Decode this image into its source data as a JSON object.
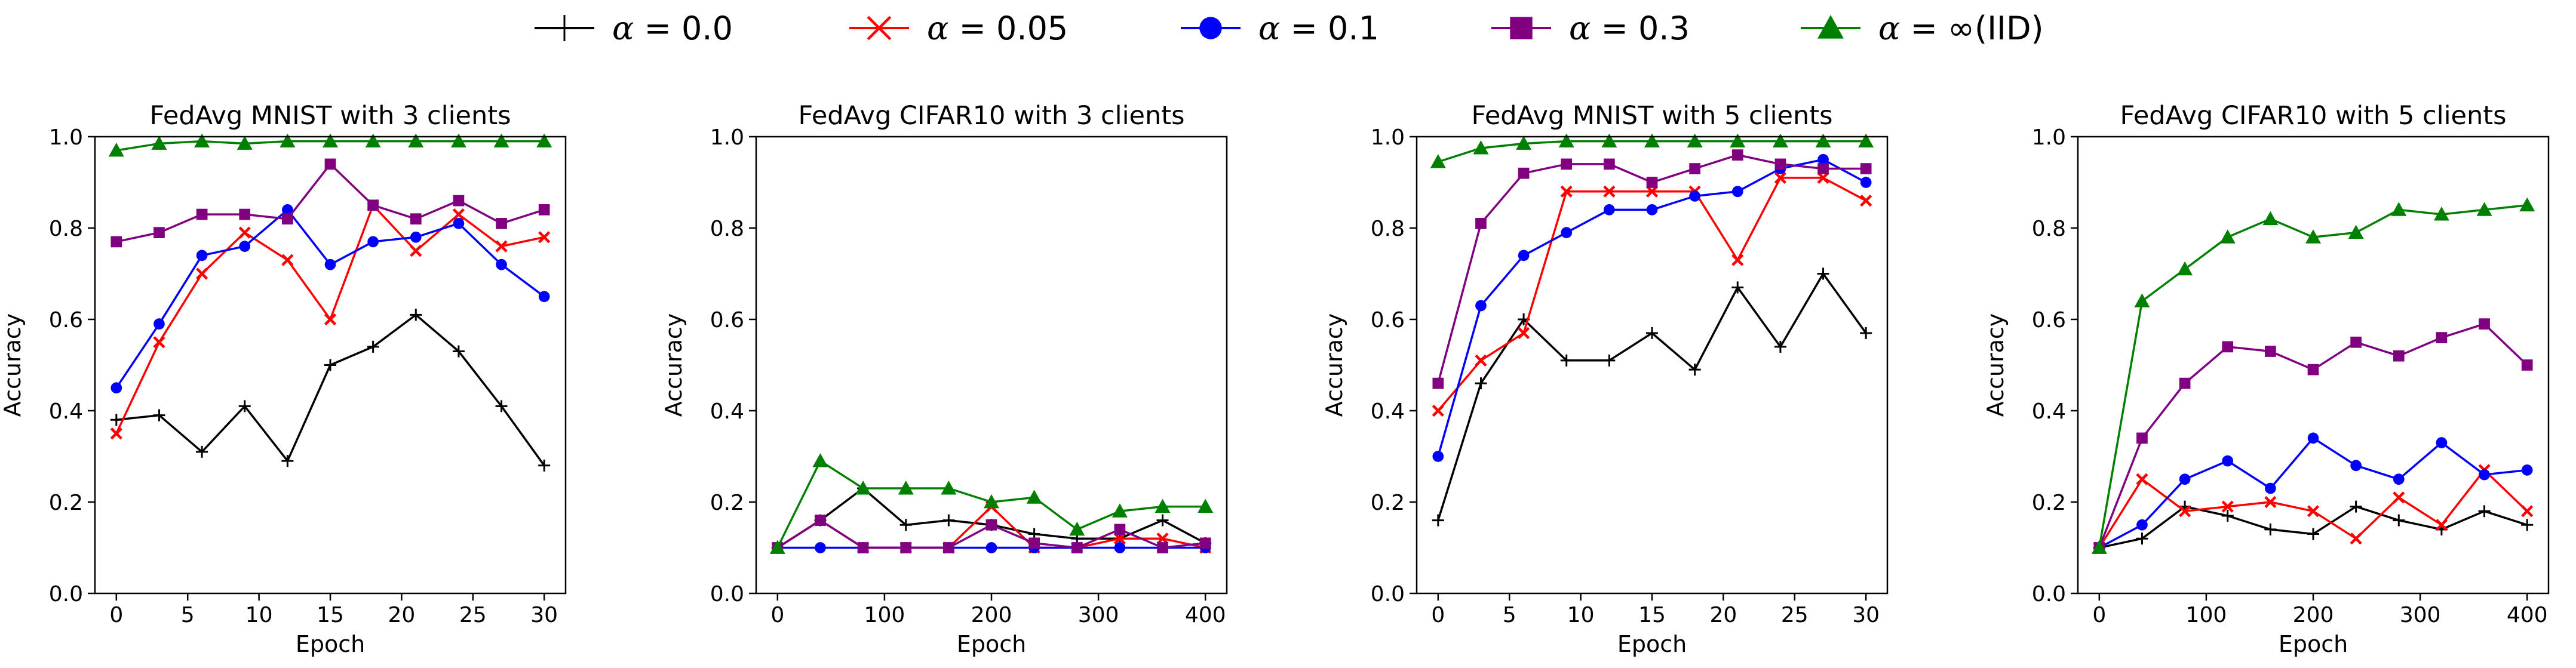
{
  "legend": {
    "placement": "top-center",
    "entries": [
      {
        "symbol": "α",
        "rest": " = 0.0",
        "color": "#000000",
        "marker": "plus"
      },
      {
        "symbol": "α",
        "rest": " = 0.05",
        "color": "#ff0000",
        "marker": "x"
      },
      {
        "symbol": "α",
        "rest": " = 0.1",
        "color": "#0000ff",
        "marker": "circle"
      },
      {
        "symbol": "α",
        "rest": " = 0.3",
        "color": "#800080",
        "marker": "square"
      },
      {
        "symbol": "α",
        "rest": " = ∞(IID)",
        "color": "#008000",
        "marker": "triangle"
      }
    ]
  },
  "chart_data": [
    {
      "type": "line",
      "title": "FedAvg MNIST with 3 clients",
      "xlabel": "Epoch",
      "ylabel": "Accuracy",
      "xlim": [
        -1.5,
        31.5
      ],
      "ylim": [
        0,
        1
      ],
      "xticks": [
        0,
        5,
        10,
        15,
        20,
        25,
        30
      ],
      "xtick_labels": [
        "0",
        "5",
        "10",
        "15",
        "20",
        "25",
        "30"
      ],
      "yticks": [
        0,
        0.2,
        0.4,
        0.6,
        0.8,
        1.0
      ],
      "ytick_labels": [
        "0.0",
        "0.2",
        "0.4",
        "0.6",
        "0.8",
        "1.0"
      ],
      "grid": false,
      "x": [
        0,
        3,
        6,
        9,
        12,
        15,
        18,
        21,
        24,
        27,
        30
      ],
      "series": [
        {
          "values": [
            0.38,
            0.39,
            0.31,
            0.41,
            0.29,
            0.5,
            0.54,
            0.61,
            0.53,
            0.41,
            0.28
          ]
        },
        {
          "values": [
            0.35,
            0.55,
            0.7,
            0.79,
            0.73,
            0.6,
            0.85,
            0.75,
            0.83,
            0.76,
            0.78
          ]
        },
        {
          "values": [
            0.45,
            0.59,
            0.74,
            0.76,
            0.84,
            0.72,
            0.77,
            0.78,
            0.81,
            0.72,
            0.65
          ]
        },
        {
          "values": [
            0.77,
            0.79,
            0.83,
            0.83,
            0.82,
            0.94,
            0.85,
            0.82,
            0.86,
            0.81,
            0.84
          ]
        },
        {
          "values": [
            0.97,
            0.985,
            0.99,
            0.985,
            0.99,
            0.99,
            0.99,
            0.99,
            0.99,
            0.99,
            0.99
          ]
        }
      ]
    },
    {
      "type": "line",
      "title": "FedAvg CIFAR10 with 3 clients",
      "xlabel": "Epoch",
      "ylabel": "Accuracy",
      "xlim": [
        -20,
        420
      ],
      "ylim": [
        0,
        1
      ],
      "xticks": [
        0,
        100,
        200,
        300,
        400
      ],
      "xtick_labels": [
        "0",
        "100",
        "200",
        "300",
        "400"
      ],
      "yticks": [
        0,
        0.2,
        0.4,
        0.6,
        0.8,
        1.0
      ],
      "ytick_labels": [
        "0.0",
        "0.2",
        "0.4",
        "0.6",
        "0.8",
        "1.0"
      ],
      "grid": false,
      "x": [
        0,
        40,
        80,
        120,
        160,
        200,
        240,
        280,
        320,
        360,
        400
      ],
      "series": [
        {
          "values": [
            0.1,
            0.16,
            0.23,
            0.15,
            0.16,
            0.15,
            0.13,
            0.12,
            0.12,
            0.16,
            0.11
          ]
        },
        {
          "values": [
            0.1,
            0.16,
            0.1,
            0.1,
            0.1,
            0.19,
            0.1,
            0.1,
            0.12,
            0.12,
            0.1
          ]
        },
        {
          "values": [
            0.1,
            0.1,
            0.1,
            0.1,
            0.1,
            0.1,
            0.1,
            0.1,
            0.1,
            0.1,
            0.1
          ]
        },
        {
          "values": [
            0.1,
            0.16,
            0.1,
            0.1,
            0.1,
            0.15,
            0.11,
            0.1,
            0.14,
            0.1,
            0.11
          ]
        },
        {
          "values": [
            0.1,
            0.29,
            0.23,
            0.23,
            0.23,
            0.2,
            0.21,
            0.14,
            0.18,
            0.19,
            0.19
          ]
        }
      ]
    },
    {
      "type": "line",
      "title": "FedAvg MNIST with 5 clients",
      "xlabel": "Epoch",
      "ylabel": "Accuracy",
      "xlim": [
        -1.5,
        31.5
      ],
      "ylim": [
        0,
        1
      ],
      "xticks": [
        0,
        5,
        10,
        15,
        20,
        25,
        30
      ],
      "xtick_labels": [
        "0",
        "5",
        "10",
        "15",
        "20",
        "25",
        "30"
      ],
      "yticks": [
        0,
        0.2,
        0.4,
        0.6,
        0.8,
        1.0
      ],
      "ytick_labels": [
        "0.0",
        "0.2",
        "0.4",
        "0.6",
        "0.8",
        "1.0"
      ],
      "grid": false,
      "x": [
        0,
        3,
        6,
        9,
        12,
        15,
        18,
        21,
        24,
        27,
        30
      ],
      "series": [
        {
          "values": [
            0.16,
            0.46,
            0.6,
            0.51,
            0.51,
            0.57,
            0.49,
            0.67,
            0.54,
            0.7,
            0.57
          ]
        },
        {
          "values": [
            0.4,
            0.51,
            0.57,
            0.88,
            0.88,
            0.88,
            0.88,
            0.73,
            0.91,
            0.91,
            0.86
          ]
        },
        {
          "values": [
            0.3,
            0.63,
            0.74,
            0.79,
            0.84,
            0.84,
            0.87,
            0.88,
            0.93,
            0.95,
            0.9
          ]
        },
        {
          "values": [
            0.46,
            0.81,
            0.92,
            0.94,
            0.94,
            0.9,
            0.93,
            0.96,
            0.94,
            0.93,
            0.93
          ]
        },
        {
          "values": [
            0.945,
            0.975,
            0.985,
            0.99,
            0.99,
            0.99,
            0.99,
            0.99,
            0.99,
            0.99,
            0.99
          ]
        }
      ]
    },
    {
      "type": "line",
      "title": "FedAvg CIFAR10 with 5 clients",
      "xlabel": "Epoch",
      "ylabel": "Accuracy",
      "xlim": [
        -20,
        420
      ],
      "ylim": [
        0,
        1
      ],
      "xticks": [
        0,
        100,
        200,
        300,
        400
      ],
      "xtick_labels": [
        "0",
        "100",
        "200",
        "300",
        "400"
      ],
      "yticks": [
        0,
        0.2,
        0.4,
        0.6,
        0.8,
        1.0
      ],
      "ytick_labels": [
        "0.0",
        "0.2",
        "0.4",
        "0.6",
        "0.8",
        "1.0"
      ],
      "grid": false,
      "x": [
        0,
        40,
        80,
        120,
        160,
        200,
        240,
        280,
        320,
        360,
        400
      ],
      "series": [
        {
          "values": [
            0.1,
            0.12,
            0.19,
            0.17,
            0.14,
            0.13,
            0.19,
            0.16,
            0.14,
            0.18,
            0.15
          ]
        },
        {
          "values": [
            0.1,
            0.25,
            0.18,
            0.19,
            0.2,
            0.18,
            0.12,
            0.21,
            0.15,
            0.27,
            0.18
          ]
        },
        {
          "values": [
            0.1,
            0.15,
            0.25,
            0.29,
            0.23,
            0.34,
            0.28,
            0.25,
            0.33,
            0.26,
            0.27
          ]
        },
        {
          "values": [
            0.1,
            0.34,
            0.46,
            0.54,
            0.53,
            0.49,
            0.55,
            0.52,
            0.56,
            0.59,
            0.5
          ]
        },
        {
          "values": [
            0.1,
            0.64,
            0.71,
            0.78,
            0.82,
            0.78,
            0.79,
            0.84,
            0.83,
            0.84,
            0.85
          ]
        }
      ]
    }
  ]
}
